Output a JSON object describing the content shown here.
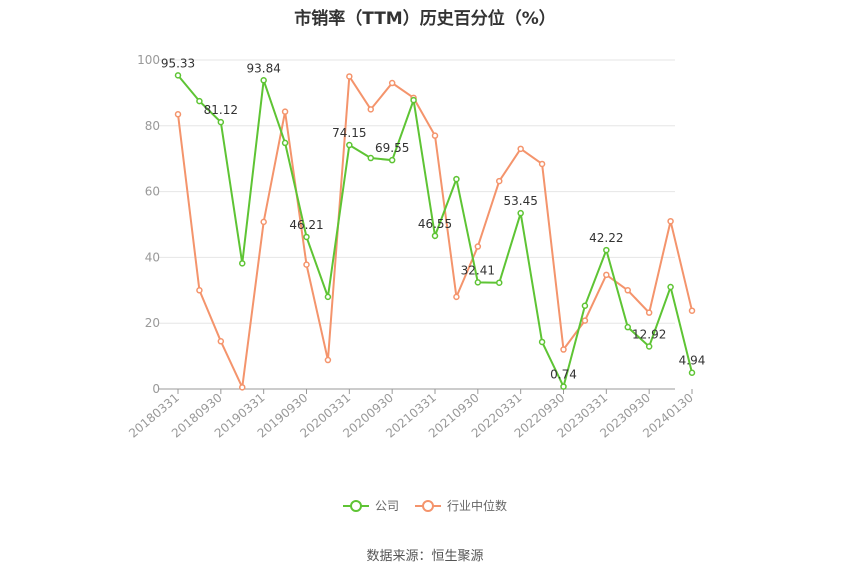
{
  "chart_data": {
    "type": "line",
    "title": "市销率（TTM）历史百分位（%）",
    "ylim": [
      0,
      100
    ],
    "yticks": [
      0,
      20,
      40,
      60,
      80,
      100
    ],
    "x_tick_labels": [
      "20180331",
      "20180930",
      "20190331",
      "20190930",
      "20200331",
      "20200930",
      "20210331",
      "20210930",
      "20220331",
      "20220930",
      "20230331",
      "20230930",
      "20240130"
    ],
    "x": [
      "20180331",
      "20180630",
      "20180930",
      "20181231",
      "20190331",
      "20190630",
      "20190930",
      "20191231",
      "20200331",
      "20200630",
      "20200930",
      "20201231",
      "20210331",
      "20210630",
      "20210930",
      "20211231",
      "20220331",
      "20220630",
      "20220930",
      "20221231",
      "20230331",
      "20230630",
      "20230930",
      "20231231",
      "20240130"
    ],
    "series": [
      {
        "name": "公司",
        "color": "#5ec434",
        "values": [
          95.33,
          87.5,
          81.12,
          38.2,
          93.84,
          74.8,
          46.21,
          28.0,
          74.15,
          70.2,
          69.55,
          87.8,
          46.55,
          63.8,
          32.41,
          32.3,
          53.45,
          14.3,
          0.74,
          25.3,
          42.22,
          18.8,
          12.92,
          31.0,
          4.94
        ],
        "labels": {
          "0": "95.33",
          "2": "81.12",
          "4": "93.84",
          "6": "46.21",
          "8": "74.15",
          "10": "69.55",
          "12": "46.55",
          "14": "32.41",
          "16": "53.45",
          "18": "0.74",
          "20": "42.22",
          "22": "12.92",
          "24": "4.94"
        }
      },
      {
        "name": "行业中位数",
        "color": "#f4946c",
        "values": [
          83.5,
          30.0,
          14.5,
          0.5,
          50.8,
          84.3,
          37.8,
          8.8,
          95.0,
          85.0,
          93.0,
          88.5,
          77.0,
          28.0,
          43.3,
          63.2,
          73.0,
          68.4,
          12.0,
          20.8,
          34.7,
          30.0,
          23.2,
          51.0,
          23.8
        ]
      }
    ],
    "grid": true,
    "legend_position": "bottom"
  },
  "source_text": "数据来源：恒生聚源"
}
